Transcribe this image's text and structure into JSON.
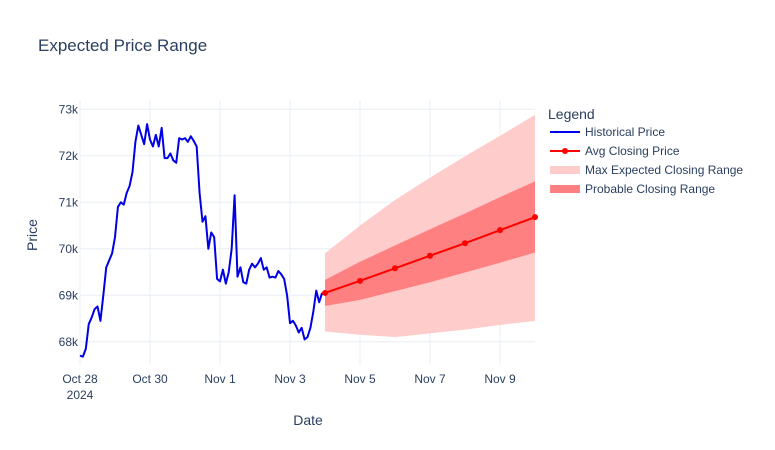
{
  "chart_data": {
    "type": "line",
    "title": "Expected Price Range",
    "xlabel": "Date",
    "ylabel": "Price",
    "x_range": [
      "2024-10-28",
      "2024-11-10"
    ],
    "ylim": [
      67500,
      73200
    ],
    "grid": true,
    "legend_title": "Legend",
    "legend_position": "right",
    "x_ticks": [
      {
        "value": "2024-10-28",
        "label": "Oct 28",
        "sublabel": "2024"
      },
      {
        "value": "2024-10-30",
        "label": "Oct 30"
      },
      {
        "value": "2024-11-01",
        "label": "Nov 1"
      },
      {
        "value": "2024-11-03",
        "label": "Nov 3"
      },
      {
        "value": "2024-11-05",
        "label": "Nov 5"
      },
      {
        "value": "2024-11-07",
        "label": "Nov 7"
      },
      {
        "value": "2024-11-09",
        "label": "Nov 9"
      }
    ],
    "y_ticks": [
      {
        "value": 68000,
        "label": "68k"
      },
      {
        "value": 69000,
        "label": "69k"
      },
      {
        "value": 70000,
        "label": "70k"
      },
      {
        "value": 71000,
        "label": "71k"
      },
      {
        "value": 72000,
        "label": "72k"
      },
      {
        "value": 73000,
        "label": "73k"
      }
    ],
    "series": [
      {
        "name": "Historical Price",
        "kind": "line",
        "color": "#0000e6",
        "x": [
          "2024-10-28 00:00",
          "2024-10-28 02:00",
          "2024-10-28 04:00",
          "2024-10-28 06:00",
          "2024-10-28 08:00",
          "2024-10-28 10:00",
          "2024-10-28 12:00",
          "2024-10-28 14:00",
          "2024-10-28 16:00",
          "2024-10-28 18:00",
          "2024-10-28 20:00",
          "2024-10-28 22:00",
          "2024-10-29 00:00",
          "2024-10-29 02:00",
          "2024-10-29 04:00",
          "2024-10-29 06:00",
          "2024-10-29 08:00",
          "2024-10-29 10:00",
          "2024-10-29 12:00",
          "2024-10-29 14:00",
          "2024-10-29 16:00",
          "2024-10-29 18:00",
          "2024-10-29 20:00",
          "2024-10-29 22:00",
          "2024-10-30 00:00",
          "2024-10-30 02:00",
          "2024-10-30 04:00",
          "2024-10-30 06:00",
          "2024-10-30 08:00",
          "2024-10-30 10:00",
          "2024-10-30 12:00",
          "2024-10-30 14:00",
          "2024-10-30 16:00",
          "2024-10-30 18:00",
          "2024-10-30 20:00",
          "2024-10-30 22:00",
          "2024-10-31 00:00",
          "2024-10-31 02:00",
          "2024-10-31 04:00",
          "2024-10-31 06:00",
          "2024-10-31 08:00",
          "2024-10-31 10:00",
          "2024-10-31 12:00",
          "2024-10-31 14:00",
          "2024-10-31 16:00",
          "2024-10-31 18:00",
          "2024-10-31 20:00",
          "2024-10-31 22:00",
          "2024-11-01 00:00",
          "2024-11-01 02:00",
          "2024-11-01 04:00",
          "2024-11-01 06:00",
          "2024-11-01 08:00",
          "2024-11-01 10:00",
          "2024-11-01 12:00",
          "2024-11-01 14:00",
          "2024-11-01 16:00",
          "2024-11-01 18:00",
          "2024-11-01 20:00",
          "2024-11-01 22:00",
          "2024-11-02 00:00",
          "2024-11-02 02:00",
          "2024-11-02 04:00",
          "2024-11-02 06:00",
          "2024-11-02 08:00",
          "2024-11-02 10:00",
          "2024-11-02 12:00",
          "2024-11-02 14:00",
          "2024-11-02 16:00",
          "2024-11-02 18:00",
          "2024-11-02 20:00",
          "2024-11-02 22:00",
          "2024-11-03 00:00",
          "2024-11-03 02:00",
          "2024-11-03 04:00",
          "2024-11-03 06:00",
          "2024-11-03 08:00",
          "2024-11-03 10:00",
          "2024-11-03 12:00",
          "2024-11-03 14:00",
          "2024-11-03 16:00",
          "2024-11-03 18:00",
          "2024-11-03 20:00",
          "2024-11-03 22:00"
        ],
        "y": [
          67700,
          67680,
          67850,
          68380,
          68520,
          68700,
          68760,
          68450,
          69000,
          69600,
          69750,
          69900,
          70250,
          70900,
          71000,
          70950,
          71200,
          71350,
          71650,
          72300,
          72650,
          72450,
          72250,
          72680,
          72350,
          72200,
          72450,
          72200,
          72600,
          71950,
          71950,
          72050,
          71900,
          71850,
          72380,
          72350,
          72380,
          72300,
          72420,
          72320,
          72200,
          71200,
          70580,
          70700,
          70000,
          70350,
          70250,
          69350,
          69300,
          69550,
          69250,
          69500,
          70000,
          71150,
          69400,
          69600,
          69280,
          69250,
          69550,
          69680,
          69600,
          69680,
          69800,
          69550,
          69600,
          69380,
          69400,
          69380,
          69520,
          69450,
          69350,
          69000,
          68400,
          68450,
          68350,
          68200,
          68300,
          68050,
          68100,
          68300,
          68650,
          69100,
          68850,
          69050
        ]
      },
      {
        "name": "Avg Closing Price",
        "kind": "line+markers",
        "color": "#ff0000",
        "x": [
          "2024-11-04",
          "2024-11-05",
          "2024-11-06",
          "2024-11-07",
          "2024-11-08",
          "2024-11-09",
          "2024-11-10"
        ],
        "y": [
          69050,
          69310,
          69580,
          69850,
          70120,
          70400,
          70680
        ]
      },
      {
        "name": "Max Expected Closing Range",
        "kind": "band",
        "color": "#ffcccc",
        "x": [
          "2024-11-04",
          "2024-11-05",
          "2024-11-06",
          "2024-11-07",
          "2024-11-08",
          "2024-11-09",
          "2024-11-10"
        ],
        "upper": [
          69900,
          70500,
          71050,
          71530,
          71990,
          72430,
          72880
        ],
        "lower": [
          68220,
          68150,
          68100,
          68180,
          68260,
          68360,
          68450
        ]
      },
      {
        "name": "Probable Closing Range",
        "kind": "band",
        "color": "#ff8080",
        "x": [
          "2024-11-04",
          "2024-11-05",
          "2024-11-06",
          "2024-11-07",
          "2024-11-08",
          "2024-11-09",
          "2024-11-10"
        ],
        "upper": [
          69330,
          69720,
          70070,
          70420,
          70760,
          71110,
          71450
        ],
        "lower": [
          68770,
          68900,
          69090,
          69280,
          69490,
          69700,
          69920
        ]
      }
    ]
  }
}
